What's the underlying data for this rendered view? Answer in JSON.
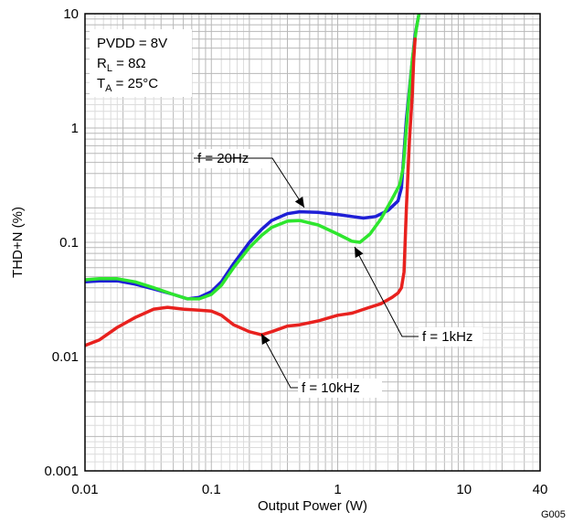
{
  "chart_data": {
    "type": "line",
    "title": "",
    "xlabel": "Output Power (W)",
    "ylabel": "THD+N (%)",
    "x_scale": "log",
    "y_scale": "log",
    "xlim": [
      0.01,
      40
    ],
    "ylim": [
      0.001,
      10
    ],
    "x_tick_labels": [
      {
        "value": 0.01,
        "label": "0.01"
      },
      {
        "value": 0.1,
        "label": "0.1"
      },
      {
        "value": 1,
        "label": "1"
      },
      {
        "value": 10,
        "label": "10"
      },
      {
        "value": 40,
        "label": "40"
      }
    ],
    "y_tick_labels": [
      {
        "value": 0.001,
        "label": "0.001"
      },
      {
        "value": 0.01,
        "label": "0.01"
      },
      {
        "value": 0.1,
        "label": "0.1"
      },
      {
        "value": 1,
        "label": "1"
      },
      {
        "value": 10,
        "label": "10"
      }
    ],
    "grid": true,
    "conditions": {
      "pvdd": "PVDD = 8V",
      "rl_main": "R",
      "rl_sub": "L",
      "rl_rest": " = 8Ω",
      "ta_main": "T",
      "ta_sub": "A",
      "ta_rest": " = 25°C"
    },
    "figure_code": "G005",
    "series": [
      {
        "name": "f = 20Hz",
        "color": "#1f1fd6",
        "points": [
          [
            0.01,
            0.045
          ],
          [
            0.013,
            0.046
          ],
          [
            0.018,
            0.046
          ],
          [
            0.025,
            0.043
          ],
          [
            0.035,
            0.039
          ],
          [
            0.05,
            0.035
          ],
          [
            0.065,
            0.032
          ],
          [
            0.08,
            0.033
          ],
          [
            0.1,
            0.037
          ],
          [
            0.12,
            0.045
          ],
          [
            0.15,
            0.065
          ],
          [
            0.2,
            0.1
          ],
          [
            0.25,
            0.13
          ],
          [
            0.3,
            0.155
          ],
          [
            0.4,
            0.178
          ],
          [
            0.5,
            0.185
          ],
          [
            0.7,
            0.183
          ],
          [
            1.0,
            0.175
          ],
          [
            1.3,
            0.168
          ],
          [
            1.6,
            0.163
          ],
          [
            2.0,
            0.168
          ],
          [
            2.5,
            0.19
          ],
          [
            3.0,
            0.23
          ],
          [
            3.2,
            0.3
          ],
          [
            3.5,
            1.2
          ],
          [
            3.8,
            3.0
          ],
          [
            4.1,
            6.5
          ],
          [
            4.4,
            10.0
          ]
        ]
      },
      {
        "name": "f = 1kHz",
        "color": "#2ee62e",
        "points": [
          [
            0.01,
            0.047
          ],
          [
            0.013,
            0.048
          ],
          [
            0.018,
            0.048
          ],
          [
            0.025,
            0.045
          ],
          [
            0.035,
            0.04
          ],
          [
            0.05,
            0.035
          ],
          [
            0.065,
            0.032
          ],
          [
            0.08,
            0.032
          ],
          [
            0.1,
            0.035
          ],
          [
            0.12,
            0.042
          ],
          [
            0.15,
            0.06
          ],
          [
            0.2,
            0.09
          ],
          [
            0.25,
            0.115
          ],
          [
            0.3,
            0.135
          ],
          [
            0.4,
            0.153
          ],
          [
            0.5,
            0.155
          ],
          [
            0.7,
            0.142
          ],
          [
            1.0,
            0.118
          ],
          [
            1.3,
            0.102
          ],
          [
            1.5,
            0.1
          ],
          [
            1.8,
            0.118
          ],
          [
            2.2,
            0.16
          ],
          [
            2.7,
            0.24
          ],
          [
            3.1,
            0.32
          ],
          [
            3.3,
            0.45
          ],
          [
            3.6,
            1.5
          ],
          [
            3.9,
            4.0
          ],
          [
            4.2,
            7.5
          ],
          [
            4.4,
            10.0
          ]
        ]
      },
      {
        "name": "f = 10kHz",
        "color": "#e8211e",
        "points": [
          [
            0.01,
            0.0125
          ],
          [
            0.013,
            0.014
          ],
          [
            0.018,
            0.018
          ],
          [
            0.025,
            0.022
          ],
          [
            0.035,
            0.026
          ],
          [
            0.045,
            0.027
          ],
          [
            0.06,
            0.026
          ],
          [
            0.08,
            0.0255
          ],
          [
            0.1,
            0.025
          ],
          [
            0.12,
            0.023
          ],
          [
            0.15,
            0.019
          ],
          [
            0.2,
            0.0165
          ],
          [
            0.25,
            0.0155
          ],
          [
            0.3,
            0.0165
          ],
          [
            0.4,
            0.0185
          ],
          [
            0.5,
            0.019
          ],
          [
            0.7,
            0.0205
          ],
          [
            1.0,
            0.023
          ],
          [
            1.3,
            0.024
          ],
          [
            1.7,
            0.0265
          ],
          [
            2.2,
            0.029
          ],
          [
            2.7,
            0.033
          ],
          [
            3.0,
            0.036
          ],
          [
            3.2,
            0.04
          ],
          [
            3.35,
            0.055
          ],
          [
            3.5,
            0.2
          ],
          [
            3.7,
            0.8
          ],
          [
            3.9,
            2.0
          ],
          [
            4.0,
            4.0
          ],
          [
            4.1,
            6.0
          ]
        ]
      }
    ]
  }
}
